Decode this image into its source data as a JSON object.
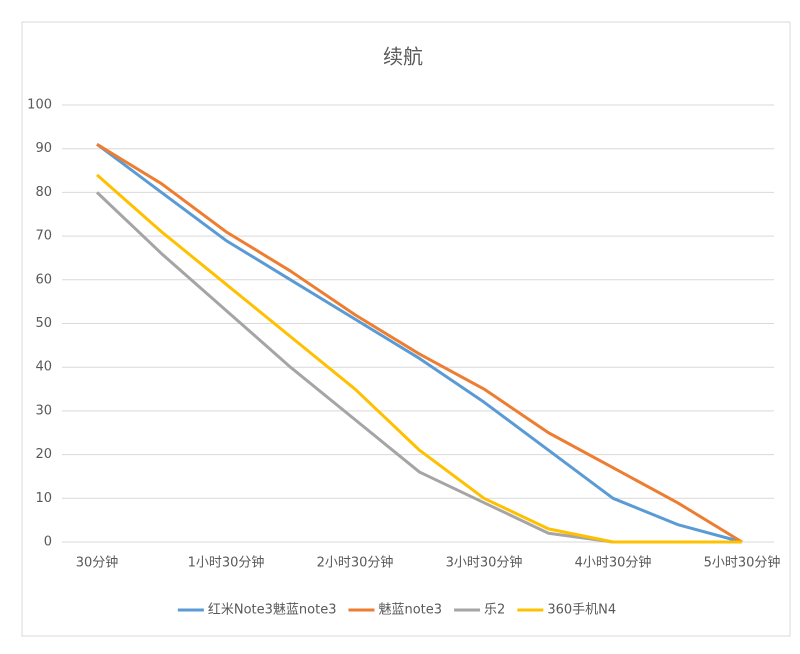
{
  "chart_data": {
    "type": "line",
    "title": "续航",
    "categories": [
      "30分钟",
      null,
      "1小时30分钟",
      null,
      "2小时30分钟",
      null,
      "3小时30分钟",
      null,
      "4小时30分钟",
      null,
      "5小时30分钟"
    ],
    "series": [
      {
        "name": "红米Note3魅蓝note3",
        "color": "#5b9bd5",
        "values": [
          91,
          80,
          69,
          60,
          51,
          42,
          32,
          21,
          10,
          4,
          0
        ]
      },
      {
        "name": "魅蓝note3",
        "color": "#ed7d31",
        "values": [
          91,
          82,
          71,
          62,
          52,
          43,
          35,
          25,
          17,
          9,
          0
        ]
      },
      {
        "name": "乐2",
        "color": "#a5a5a5",
        "values": [
          80,
          66,
          53,
          40,
          28,
          16,
          9,
          2,
          0,
          0,
          0
        ]
      },
      {
        "name": "360手机N4",
        "color": "#ffc000",
        "values": [
          84,
          71,
          59,
          47,
          35,
          21,
          10,
          3,
          0,
          0,
          0
        ]
      }
    ],
    "ylim": [
      0,
      100
    ],
    "yticks": [
      0,
      10,
      20,
      30,
      40,
      50,
      60,
      70,
      80,
      90,
      100
    ],
    "grid": true,
    "legend": "bottom"
  }
}
